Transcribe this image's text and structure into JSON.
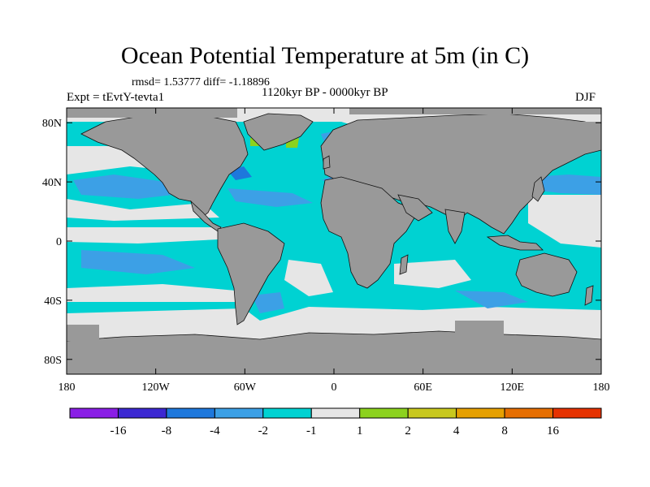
{
  "title": "Ocean Potential Temperature at 5m (in C)",
  "stats": "rmsd= 1.53777  diff= -1.18896",
  "experiment": "Expt = tEvtY-tevta1",
  "period": "1120kyr BP - 0000kyr BP",
  "season": "DJF",
  "map": {
    "lat_ticks": [
      {
        "label": "80N",
        "value": 80
      },
      {
        "label": "40N",
        "value": 40
      },
      {
        "label": "0",
        "value": 0
      },
      {
        "label": "40S",
        "value": -40
      },
      {
        "label": "80S",
        "value": -80
      }
    ],
    "lon_ticks": [
      {
        "label": "180",
        "value": -180
      },
      {
        "label": "120W",
        "value": -120
      },
      {
        "label": "60W",
        "value": -60
      },
      {
        "label": "0",
        "value": 0
      },
      {
        "label": "60E",
        "value": 60
      },
      {
        "label": "120E",
        "value": 120
      },
      {
        "label": "180",
        "value": 180
      }
    ],
    "lat_range": [
      -90,
      90
    ],
    "lon_range": [
      -180,
      180
    ]
  },
  "colorbar": {
    "colors": [
      "#8a1ee6",
      "#3c28d2",
      "#1e78dc",
      "#3ca0e6",
      "#00d2d2",
      "#e6e6e6",
      "#8cd21e",
      "#c8c81e",
      "#e6a000",
      "#e66e00",
      "#e63200"
    ],
    "labels": [
      "-16",
      "-8",
      "-4",
      "-2",
      "-1",
      "1",
      "2",
      "4",
      "8",
      "16"
    ]
  },
  "colors": {
    "land": "#999999",
    "neutral": "#e6e6e6",
    "cyan": "#00d2d2",
    "light_blue": "#3ca0e6",
    "blue": "#1e78dc",
    "green": "#8cd21e",
    "yellow": "#c8c81e"
  }
}
